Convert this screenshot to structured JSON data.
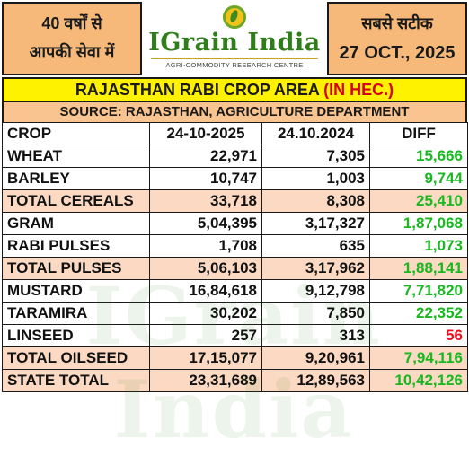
{
  "header": {
    "left_line1": "40 वर्षों से",
    "left_line2": "आपकी सेवा में",
    "logo_name": "IGrain India",
    "logo_tagline": "AGRI-COMMODITY RESEARCH CENTRE",
    "right_line1": "सबसे सटीक",
    "right_date": "27 OCT., 2025"
  },
  "title": {
    "main": "RAJASTHAN RABI CROP AREA ",
    "unit": "(IN HEC.)"
  },
  "source": "SOURCE: RAJASTHAN, AGRICULTURE DEPARTMENT",
  "table": {
    "headers": [
      "CROP",
      "24-10-2025",
      "24.10.2024",
      "DIFF"
    ],
    "rows": [
      {
        "crop": "WHEAT",
        "y2025": "22,971",
        "y2024": "7,305",
        "diff": "15,666",
        "total": false,
        "negative": false
      },
      {
        "crop": "BARLEY",
        "y2025": "10,747",
        "y2024": "1,003",
        "diff": "9,744",
        "total": false,
        "negative": false
      },
      {
        "crop": "TOTAL CEREALS",
        "y2025": "33,718",
        "y2024": "8,308",
        "diff": "25,410",
        "total": true,
        "negative": false
      },
      {
        "crop": "GRAM",
        "y2025": "5,04,395",
        "y2024": "3,17,327",
        "diff": "1,87,068",
        "total": false,
        "negative": false
      },
      {
        "crop": "RABI PULSES",
        "y2025": "1,708",
        "y2024": "635",
        "diff": "1,073",
        "total": false,
        "negative": false
      },
      {
        "crop": "TOTAL PULSES",
        "y2025": "5,06,103",
        "y2024": "3,17,962",
        "diff": "1,88,141",
        "total": true,
        "negative": false
      },
      {
        "crop": "MUSTARD",
        "y2025": "16,84,618",
        "y2024": "9,12,798",
        "diff": "7,71,820",
        "total": false,
        "negative": false
      },
      {
        "crop": "TARAMIRA",
        "y2025": "30,202",
        "y2024": "7,850",
        "diff": "22,352",
        "total": false,
        "negative": false
      },
      {
        "crop": "LINSEED",
        "y2025": "257",
        "y2024": "313",
        "diff": "56",
        "total": false,
        "negative": true
      },
      {
        "crop": "TOTAL OILSEED",
        "y2025": "17,15,077",
        "y2024": "9,20,961",
        "diff": "7,94,116",
        "total": true,
        "negative": false
      },
      {
        "crop": "STATE TOTAL",
        "y2025": "23,31,689",
        "y2024": "12,89,563",
        "diff": "10,42,126",
        "total": true,
        "negative": false
      }
    ]
  },
  "colors": {
    "header_box": "#f7b97a",
    "title_bar": "#fff200",
    "source_bar": "#f9c48f",
    "total_row": "#fbd9c2",
    "diff_positive": "#19b821",
    "diff_negative": "#e8121c",
    "unit_text": "#d6001c"
  }
}
